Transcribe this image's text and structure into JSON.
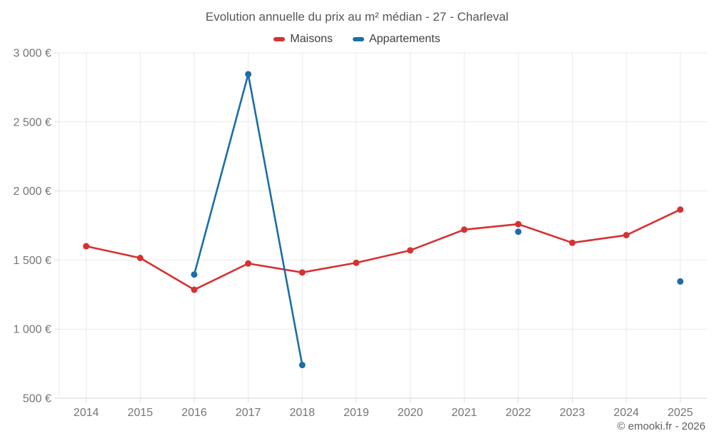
{
  "title": "Evolution annuelle du prix au m² médian - 27 - Charleval",
  "copyright": "© emooki.fr - 2026",
  "legend": [
    {
      "label": "Maisons",
      "color": "#d53231"
    },
    {
      "label": "Appartements",
      "color": "#1c6ea4"
    }
  ],
  "colors": {
    "maisons": "#d53231",
    "appartements": "#1c6ea4",
    "gridline": "#e9e9e9",
    "axis_line": "#d6d6d6",
    "tick": "#dcdcdc",
    "axis_text": "#757575"
  },
  "chart_data": {
    "type": "line",
    "title": "Evolution annuelle du prix au m² médian - 27 - Charleval",
    "categories": [
      "2014",
      "2015",
      "2016",
      "2017",
      "2018",
      "2019",
      "2020",
      "2021",
      "2022",
      "2023",
      "2024",
      "2025"
    ],
    "series": [
      {
        "name": "Maisons",
        "color": "#d53231",
        "values": [
          1600,
          1515,
          1285,
          1475,
          1410,
          1480,
          1570,
          1720,
          1760,
          1625,
          1680,
          1865
        ]
      },
      {
        "name": "Appartements",
        "color": "#1c6ea4",
        "values": [
          null,
          null,
          1395,
          2845,
          740,
          null,
          null,
          null,
          1705,
          null,
          null,
          1345
        ]
      }
    ],
    "xlabel": "",
    "ylabel": "",
    "ylim": [
      500,
      3000
    ],
    "y_ticks": [
      500,
      1000,
      1500,
      2000,
      2500,
      3000
    ],
    "y_tick_labels": [
      "500 €",
      "1 000 €",
      "1 500 €",
      "2 000 €",
      "2 500 €",
      "3 000 €"
    ],
    "grid": true,
    "legend_position": "top"
  }
}
